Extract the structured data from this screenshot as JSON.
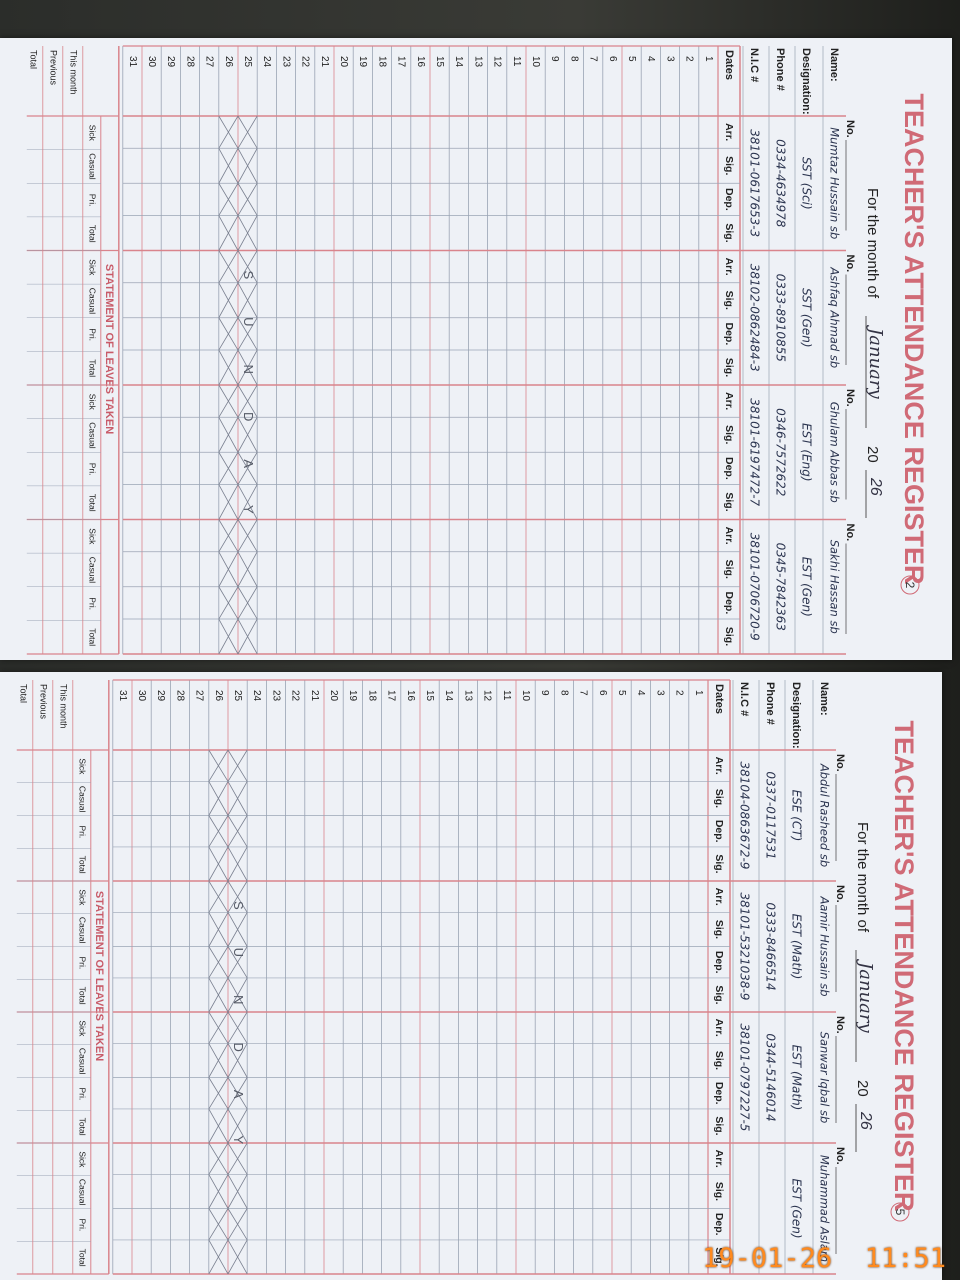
{
  "register": {
    "title": "TEACHER'S ATTENDANCE REGISTER",
    "month_label": "For the month of",
    "no_label": "No.",
    "field_labels": [
      "Name:",
      "Designation:",
      "Phone #",
      "N.I.C #"
    ],
    "dates_label": "Dates",
    "column_headers": [
      "Arr.",
      "Sig.",
      "Dep.",
      "Sig."
    ],
    "dates": [
      1,
      2,
      3,
      4,
      5,
      6,
      7,
      8,
      9,
      10,
      11,
      12,
      13,
      14,
      15,
      16,
      17,
      18,
      19,
      20,
      21,
      22,
      23,
      24,
      25,
      26,
      27,
      28,
      29,
      30,
      31
    ],
    "leave_title": "STATEMENT OF LEAVES TAKEN",
    "leave_headers": [
      "Sick",
      "Casual",
      "Pri.",
      "Total"
    ],
    "leave_rows": [
      "This month",
      "Previous",
      "Total"
    ],
    "sunday_note": "SUNDAY"
  },
  "pages": [
    {
      "page_number": "2",
      "month": "January",
      "year_prefix": "20",
      "year": "26",
      "teachers": [
        {
          "name": "Mumtaz Hussain sb",
          "designation": "SST (Sci)",
          "phone": "0334-4634978",
          "nic": "38101-0617653-3"
        },
        {
          "name": "Ashfaq Ahmad sb",
          "designation": "SST (Gen)",
          "phone": "0333-8910855",
          "nic": "38102-0862484-3"
        },
        {
          "name": "Ghulam Abbas sb",
          "designation": "EST (Eng)",
          "phone": "0346-7572622",
          "nic": "38101-6197472-7"
        },
        {
          "name": "Sakhi Hassan sb",
          "designation": "EST (Gen)",
          "phone": "0345-7842363",
          "nic": "38101-0706720-9"
        }
      ]
    },
    {
      "page_number": "5",
      "month": "January",
      "year_prefix": "20",
      "year": "26",
      "teachers": [
        {
          "name": "Abdul Rasheed sb",
          "designation": "ESE (CT)",
          "phone": "0337-0117531",
          "nic": "38104-0863672-9"
        },
        {
          "name": "Aamir Hussain sb",
          "designation": "EST (Math)",
          "phone": "0333-8466514",
          "nic": "38101-5321038-9"
        },
        {
          "name": "Sanwar Iqbal sb",
          "designation": "EST (Math)",
          "phone": "0344-5146014",
          "nic": "38101-0797227-5"
        },
        {
          "name": "Muhammad Aslam",
          "designation": "EST (Gen)"
        }
      ]
    }
  ],
  "timestamp": "19-01-26  11:51"
}
